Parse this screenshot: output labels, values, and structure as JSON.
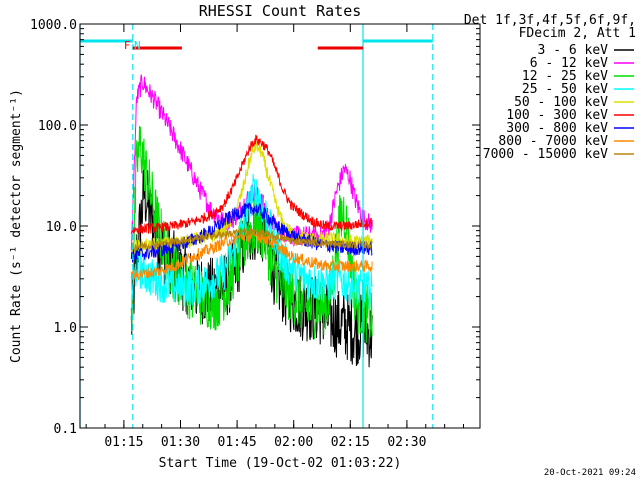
{
  "chart_data": {
    "type": "line",
    "title": "RHESSI Count Rates",
    "xlabel": "Start Time (19-Oct-02 01:03:22)",
    "ylabel": "Count Rate (s⁻¹ detector segment⁻¹)",
    "yscale": "log",
    "ylim": [
      0.1,
      1000
    ],
    "xlim_minutes": [
      0,
      106
    ],
    "x_ticks": [
      {
        "label": "01:15",
        "t": 11.63
      },
      {
        "label": "01:30",
        "t": 26.63
      },
      {
        "label": "01:45",
        "t": 41.63
      },
      {
        "label": "02:00",
        "t": 56.63
      },
      {
        "label": "02:15",
        "t": 71.63
      },
      {
        "label": "02:30",
        "t": 86.63
      }
    ],
    "y_ticks": [
      {
        "label": "0.1",
        "v": 0.1
      },
      {
        "label": "1.0",
        "v": 1.0
      },
      {
        "label": "10.0",
        "v": 10.0
      },
      {
        "label": "100.0",
        "v": 100.0
      },
      {
        "label": "1000.0",
        "v": 1000.0
      }
    ],
    "legend": {
      "position": "right",
      "header": [
        "Det 1f,3f,4f,5f,6f,9f,",
        "FDecim 2, Att 1"
      ],
      "entries": [
        {
          "name": "3 - 6 keV",
          "color": "#000000"
        },
        {
          "name": "6 - 12 keV",
          "color": "#ff00ff"
        },
        {
          "name": "12 - 25 keV",
          "color": "#00dd00"
        },
        {
          "name": "25 - 50 keV",
          "color": "#00ffff"
        },
        {
          "name": "50 - 100 keV",
          "color": "#dddd00"
        },
        {
          "name": "100 - 300 keV",
          "color": "#ff0000"
        },
        {
          "name": "300 - 800 keV",
          "color": "#0000ff"
        },
        {
          "name": "800 - 7000 keV",
          "color": "#ff8800"
        },
        {
          "name": "7000 - 15000 keV",
          "color": "#b8860b"
        }
      ]
    },
    "series": [
      {
        "name": "3 - 6 keV",
        "color": "#000000",
        "noise": 0.35,
        "points": [
          [
            13.6,
            1.0
          ],
          [
            15,
            5
          ],
          [
            17,
            22
          ],
          [
            19,
            12
          ],
          [
            22,
            6
          ],
          [
            26,
            3.5
          ],
          [
            30,
            2.6
          ],
          [
            34,
            2.2
          ],
          [
            38,
            2.4
          ],
          [
            41,
            3.5
          ],
          [
            43,
            6
          ],
          [
            45,
            9
          ],
          [
            47,
            10
          ],
          [
            49,
            9
          ],
          [
            50,
            6
          ],
          [
            52,
            3
          ],
          [
            55,
            2
          ],
          [
            59,
            1.6
          ],
          [
            63,
            1.5
          ],
          [
            66,
            1.2
          ],
          [
            68,
            1.1
          ],
          [
            71,
            1.0
          ],
          [
            73,
            0.9
          ],
          [
            75,
            1.0
          ],
          [
            76,
            0.9
          ],
          [
            77.5,
            0.8
          ]
        ]
      },
      {
        "name": "6 - 12 keV",
        "color": "#ff00ff",
        "noise": 0.1,
        "points": [
          [
            13.6,
            5
          ],
          [
            15,
            180
          ],
          [
            16.5,
            270
          ],
          [
            20,
            170
          ],
          [
            24,
            90
          ],
          [
            28,
            45
          ],
          [
            32,
            22
          ],
          [
            35,
            14
          ],
          [
            38,
            11
          ],
          [
            41,
            12
          ],
          [
            44,
            18
          ],
          [
            46,
            22
          ],
          [
            48,
            18
          ],
          [
            50,
            12
          ],
          [
            53,
            9
          ],
          [
            56,
            8
          ],
          [
            59,
            8
          ],
          [
            62,
            8
          ],
          [
            64,
            8
          ],
          [
            66,
            10
          ],
          [
            68,
            22
          ],
          [
            70,
            37
          ],
          [
            71.5,
            30
          ],
          [
            73,
            18
          ],
          [
            75,
            12
          ],
          [
            77.5,
            10
          ]
        ]
      },
      {
        "name": "12 - 25 keV",
        "color": "#00dd00",
        "noise": 0.3,
        "points": [
          [
            13.6,
            1.2
          ],
          [
            15,
            40
          ],
          [
            16,
            65
          ],
          [
            18,
            28
          ],
          [
            21,
            9
          ],
          [
            24,
            4
          ],
          [
            28,
            2.5
          ],
          [
            32,
            2.0
          ],
          [
            36,
            1.8
          ],
          [
            39,
            2.5
          ],
          [
            42,
            5
          ],
          [
            45,
            9
          ],
          [
            47,
            10
          ],
          [
            49,
            8
          ],
          [
            51,
            4
          ],
          [
            54,
            2.5
          ],
          [
            57,
            2.0
          ],
          [
            60,
            1.6
          ],
          [
            63,
            1.5
          ],
          [
            66,
            1.8
          ],
          [
            68,
            6
          ],
          [
            69,
            12
          ],
          [
            70,
            14
          ],
          [
            71.5,
            6
          ],
          [
            73,
            1.8
          ],
          [
            75,
            1.4
          ],
          [
            77.5,
            1.3
          ]
        ]
      },
      {
        "name": "25 - 50 keV",
        "color": "#00ffff",
        "noise": 0.2,
        "points": [
          [
            13.6,
            2.0
          ],
          [
            15,
            4
          ],
          [
            18,
            3.2
          ],
          [
            22,
            2.7
          ],
          [
            26,
            2.5
          ],
          [
            30,
            2.5
          ],
          [
            34,
            2.8
          ],
          [
            38,
            3.5
          ],
          [
            41,
            6
          ],
          [
            44,
            12
          ],
          [
            46,
            22
          ],
          [
            47,
            20
          ],
          [
            49,
            14
          ],
          [
            51,
            8
          ],
          [
            54,
            4.5
          ],
          [
            57,
            3.5
          ],
          [
            60,
            3.0
          ],
          [
            63,
            2.7
          ],
          [
            66,
            2.7
          ],
          [
            69,
            3.0
          ],
          [
            72,
            2.5
          ],
          [
            75,
            2.3
          ],
          [
            77.5,
            2.3
          ]
        ]
      },
      {
        "name": "50 - 100 keV",
        "color": "#dddd00",
        "noise": 0.07,
        "points": [
          [
            13.6,
            6
          ],
          [
            15,
            6.3
          ],
          [
            20,
            6.5
          ],
          [
            25,
            6.8
          ],
          [
            30,
            7.3
          ],
          [
            35,
            8
          ],
          [
            38,
            9
          ],
          [
            41,
            13
          ],
          [
            43,
            22
          ],
          [
            45,
            45
          ],
          [
            46.5,
            63
          ],
          [
            48,
            55
          ],
          [
            50,
            30
          ],
          [
            52,
            16
          ],
          [
            54,
            10
          ],
          [
            57,
            8
          ],
          [
            60,
            7.5
          ],
          [
            63,
            7.5
          ],
          [
            66,
            7.5
          ],
          [
            69,
            7.2
          ],
          [
            72,
            7.0
          ],
          [
            75,
            7.0
          ],
          [
            77.5,
            7.0
          ]
        ]
      },
      {
        "name": "100 - 300 keV",
        "color": "#ff0000",
        "noise": 0.05,
        "points": [
          [
            13.6,
            9
          ],
          [
            15,
            9.3
          ],
          [
            20,
            9.5
          ],
          [
            25,
            10
          ],
          [
            30,
            11
          ],
          [
            35,
            13
          ],
          [
            38,
            16
          ],
          [
            41,
            26
          ],
          [
            43,
            40
          ],
          [
            45,
            60
          ],
          [
            46.5,
            72
          ],
          [
            48,
            68
          ],
          [
            50,
            55
          ],
          [
            52,
            35
          ],
          [
            54,
            22
          ],
          [
            56,
            16
          ],
          [
            59,
            13
          ],
          [
            62,
            11
          ],
          [
            65,
            10
          ],
          [
            68,
            10
          ],
          [
            71,
            10
          ],
          [
            74,
            10.5
          ],
          [
            77.5,
            11
          ]
        ]
      },
      {
        "name": "300 - 800 keV",
        "color": "#0000ff",
        "noise": 0.07,
        "points": [
          [
            13.6,
            5
          ],
          [
            15,
            5.2
          ],
          [
            20,
            5.6
          ],
          [
            25,
            6.3
          ],
          [
            30,
            7.3
          ],
          [
            35,
            9
          ],
          [
            38,
            11
          ],
          [
            41,
            13
          ],
          [
            43,
            14
          ],
          [
            46,
            15
          ],
          [
            48,
            14
          ],
          [
            50,
            12
          ],
          [
            52,
            10
          ],
          [
            55,
            8.5
          ],
          [
            58,
            7.5
          ],
          [
            61,
            7
          ],
          [
            64,
            6.5
          ],
          [
            67,
            6.3
          ],
          [
            70,
            6.0
          ],
          [
            73,
            6.0
          ],
          [
            77.5,
            6.0
          ]
        ]
      },
      {
        "name": "800 - 7000 keV",
        "color": "#ff8800",
        "noise": 0.06,
        "points": [
          [
            13.6,
            3.2
          ],
          [
            15,
            3.3
          ],
          [
            20,
            3.5
          ],
          [
            25,
            4.0
          ],
          [
            30,
            5.0
          ],
          [
            35,
            6.0
          ],
          [
            38,
            6.8
          ],
          [
            41,
            7.5
          ],
          [
            44,
            8
          ],
          [
            47,
            8
          ],
          [
            50,
            7.2
          ],
          [
            53,
            6.0
          ],
          [
            56,
            5.0
          ],
          [
            60,
            4.5
          ],
          [
            63,
            4.2
          ],
          [
            66,
            4.0
          ],
          [
            69,
            4.0
          ],
          [
            73,
            4.0
          ],
          [
            77.5,
            4.0
          ]
        ]
      },
      {
        "name": "7000 - 15000 keV",
        "color": "#b8860b",
        "noise": 0.04,
        "points": [
          [
            13.6,
            6.2
          ],
          [
            20,
            6.6
          ],
          [
            25,
            7.0
          ],
          [
            30,
            7.5
          ],
          [
            35,
            8.0
          ],
          [
            40,
            8.5
          ],
          [
            45,
            8.8
          ],
          [
            48,
            8.5
          ],
          [
            51,
            8
          ],
          [
            54,
            7.5
          ],
          [
            58,
            7.0
          ],
          [
            63,
            6.8
          ],
          [
            68,
            6.6
          ],
          [
            73,
            6.5
          ],
          [
            77.5,
            6.5
          ]
        ]
      }
    ],
    "overlays": {
      "cyan_vlines_solid": [
        0,
        75
      ],
      "cyan_vlines_dashed": [
        14,
        93.5
      ],
      "cyan_bars": [
        [
          0,
          14
        ],
        [
          75,
          93.5
        ]
      ],
      "red_bars": [
        [
          14,
          27
        ],
        [
          63,
          75
        ]
      ],
      "markers": [
        {
          "text": "F",
          "t": 12.5,
          "color": "#ff0000"
        },
        {
          "text": "N",
          "t": 15.2,
          "color": "#00e5ee"
        }
      ]
    }
  },
  "timestamp": "20-Oct-2021 09:24"
}
